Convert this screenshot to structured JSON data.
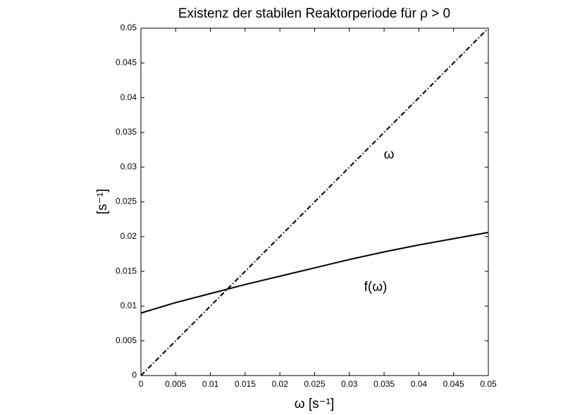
{
  "chart_data": {
    "type": "line",
    "title": "Existenz der stabilen Reaktorperiode für ρ > 0",
    "x_label": "ω [s⁻¹]",
    "y_label": "[s⁻¹]",
    "x": [
      0,
      0.005,
      0.01,
      0.015,
      0.02,
      0.025,
      0.03,
      0.035,
      0.04,
      0.045,
      0.05
    ],
    "series": [
      {
        "name": "ω",
        "color": "#000000",
        "dash": "dashdot",
        "values": [
          0,
          0.005,
          0.01,
          0.015,
          0.02,
          0.025,
          0.03,
          0.035,
          0.04,
          0.045,
          0.05
        ]
      },
      {
        "name": "f(ω)",
        "color": "#000000",
        "dash": "solid",
        "values": [
          0.009,
          0.0105,
          0.0118,
          0.0131,
          0.0143,
          0.0155,
          0.0167,
          0.0178,
          0.0188,
          0.0197,
          0.0206
        ]
      }
    ],
    "xlim": [
      0,
      0.05
    ],
    "ylim": [
      0,
      0.05
    ],
    "xticks": [
      0,
      0.005,
      0.01,
      0.015,
      0.02,
      0.025,
      0.03,
      0.035,
      0.04,
      0.045,
      0.05
    ],
    "yticks": [
      0,
      0.005,
      0.01,
      0.015,
      0.02,
      0.025,
      0.03,
      0.035,
      0.04,
      0.045,
      0.05
    ],
    "grid": false
  }
}
